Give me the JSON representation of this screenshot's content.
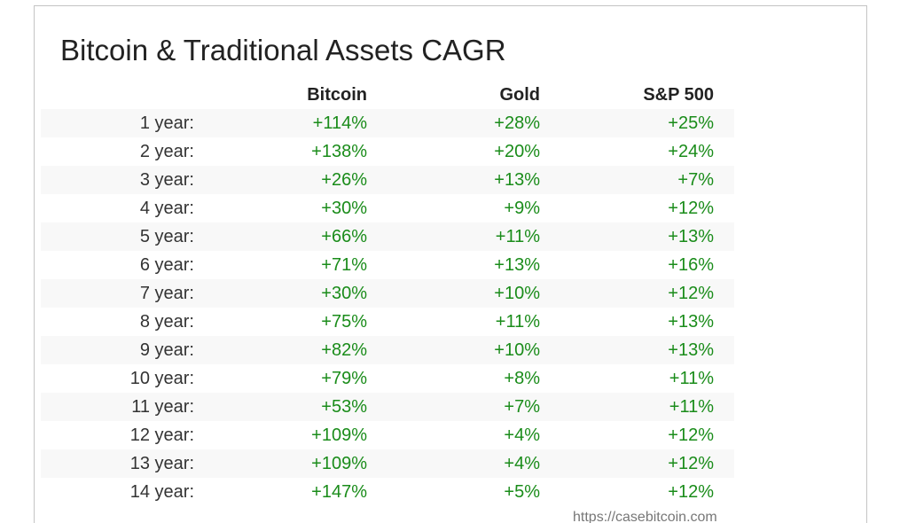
{
  "title": "Bitcoin & Traditional Assets CAGR",
  "columns": [
    "Bitcoin",
    "Gold",
    "S&P 500"
  ],
  "rows": [
    {
      "label": "1 year:",
      "values": [
        "+114%",
        "+28%",
        "+25%"
      ]
    },
    {
      "label": "2 year:",
      "values": [
        "+138%",
        "+20%",
        "+24%"
      ]
    },
    {
      "label": "3 year:",
      "values": [
        "+26%",
        "+13%",
        "+7%"
      ]
    },
    {
      "label": "4 year:",
      "values": [
        "+30%",
        "+9%",
        "+12%"
      ]
    },
    {
      "label": "5 year:",
      "values": [
        "+66%",
        "+11%",
        "+13%"
      ]
    },
    {
      "label": "6 year:",
      "values": [
        "+71%",
        "+13%",
        "+16%"
      ]
    },
    {
      "label": "7 year:",
      "values": [
        "+30%",
        "+10%",
        "+12%"
      ]
    },
    {
      "label": "8 year:",
      "values": [
        "+75%",
        "+11%",
        "+13%"
      ]
    },
    {
      "label": "9 year:",
      "values": [
        "+82%",
        "+10%",
        "+13%"
      ]
    },
    {
      "label": "10 year:",
      "values": [
        "+79%",
        "+8%",
        "+11%"
      ]
    },
    {
      "label": "11 year:",
      "values": [
        "+53%",
        "+7%",
        "+11%"
      ]
    },
    {
      "label": "12 year:",
      "values": [
        "+109%",
        "+4%",
        "+12%"
      ]
    },
    {
      "label": "13 year:",
      "values": [
        "+109%",
        "+4%",
        "+12%"
      ]
    },
    {
      "label": "14 year:",
      "values": [
        "+147%",
        "+5%",
        "+12%"
      ]
    }
  ],
  "footer": "https://casebitcoin.com",
  "colors": {
    "positive": "#1a8c1a",
    "stripe": "#f8f8f8"
  }
}
